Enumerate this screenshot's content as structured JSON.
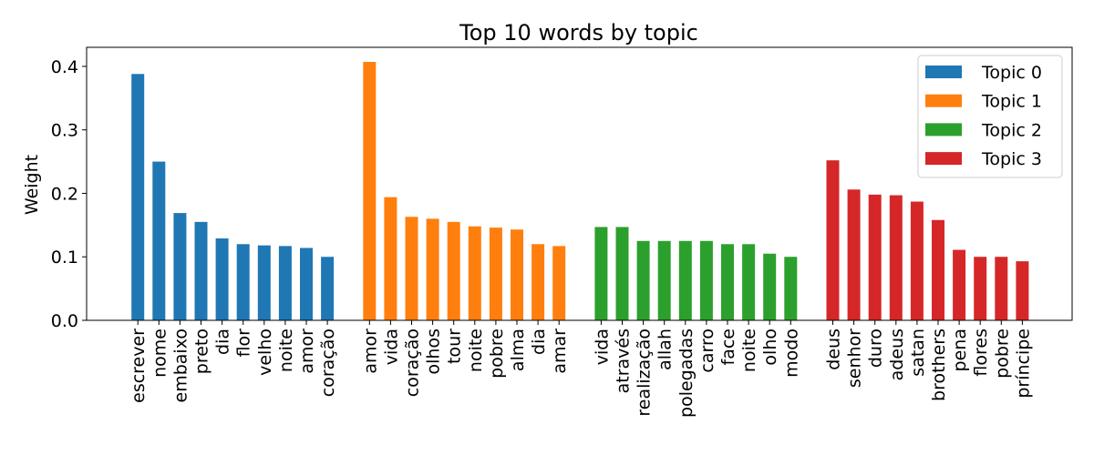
{
  "chart_data": {
    "type": "bar",
    "title": "Top 10 words by topic",
    "xlabel": "",
    "ylabel": "Weight",
    "ylim": [
      0,
      0.43
    ],
    "yticks": [
      "0.0",
      "0.1",
      "0.2",
      "0.3",
      "0.4"
    ],
    "grid": false,
    "legend_position": "top-right",
    "series": [
      {
        "name": "Topic 0",
        "color": "#1f77b4",
        "categories": [
          "escrever",
          "nome",
          "embaixo",
          "preto",
          "dia",
          "flor",
          "velho",
          "noite",
          "amor",
          "coração"
        ],
        "values": [
          0.388,
          0.25,
          0.169,
          0.155,
          0.129,
          0.12,
          0.118,
          0.117,
          0.114,
          0.1
        ]
      },
      {
        "name": "Topic 1",
        "color": "#ff7f0e",
        "categories": [
          "amor",
          "vida",
          "coração",
          "olhos",
          "tour",
          "noite",
          "pobre",
          "alma",
          "dia",
          "amar"
        ],
        "values": [
          0.407,
          0.194,
          0.163,
          0.16,
          0.155,
          0.148,
          0.146,
          0.143,
          0.12,
          0.117
        ]
      },
      {
        "name": "Topic 2",
        "color": "#2ca02c",
        "categories": [
          "vida",
          "através",
          "realização",
          "allah",
          "polegadas",
          "carro",
          "face",
          "noite",
          "olho",
          "modo"
        ],
        "values": [
          0.147,
          0.147,
          0.125,
          0.125,
          0.125,
          0.125,
          0.12,
          0.12,
          0.105,
          0.1
        ]
      },
      {
        "name": "Topic 3",
        "color": "#d62728",
        "categories": [
          "deus",
          "senhor",
          "duro",
          "adeus",
          "satan",
          "brothers",
          "pena",
          "flores",
          "pobre",
          "príncipe"
        ],
        "values": [
          0.252,
          0.206,
          0.198,
          0.197,
          0.187,
          0.158,
          0.111,
          0.1,
          0.1,
          0.093
        ]
      }
    ]
  }
}
